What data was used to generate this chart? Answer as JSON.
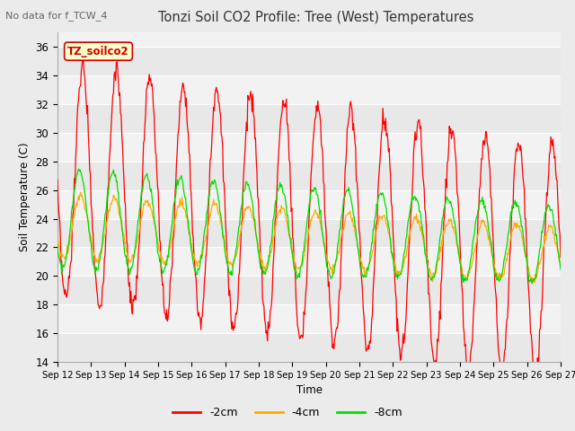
{
  "title": "Tonzi Soil CO2 Profile: Tree (West) Temperatures",
  "subtitle": "No data for f_TCW_4",
  "ylabel": "Soil Temperature (C)",
  "xlabel": "Time",
  "legend_label": "TZ_soilco2",
  "series_labels": [
    "-2cm",
    "-4cm",
    "-8cm"
  ],
  "series_colors": [
    "#ff0000",
    "#ffaa00",
    "#00dd00"
  ],
  "ylim": [
    14,
    37
  ],
  "yticks": [
    14,
    16,
    18,
    20,
    22,
    24,
    26,
    28,
    30,
    32,
    34,
    36
  ],
  "bg_color": "#ebebeb",
  "plot_bg": "#f0f0f0",
  "grid_color": "#ffffff",
  "n_days": 15,
  "n_per_day": 48,
  "start_day": 12
}
